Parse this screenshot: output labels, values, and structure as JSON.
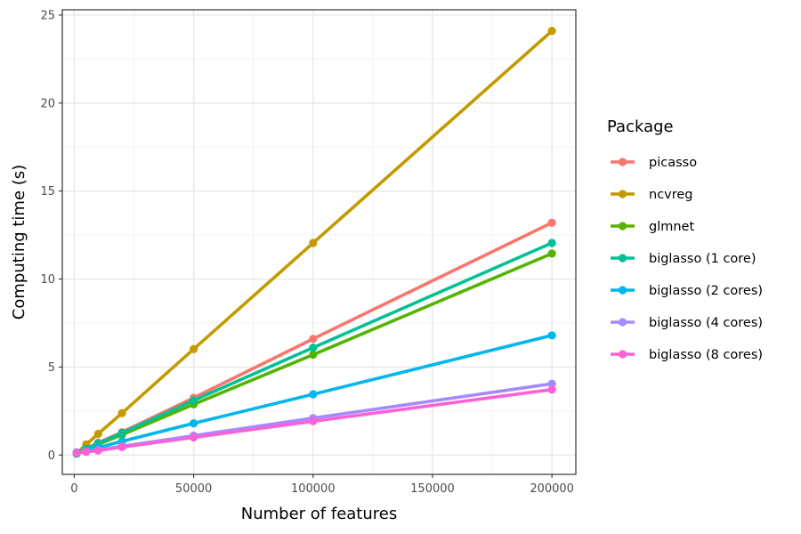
{
  "chart_data": {
    "type": "line",
    "xlabel": "Number of features",
    "ylabel": "Computing time (s)",
    "xlim": [
      -5000,
      210000
    ],
    "ylim": [
      -1.1,
      25.3
    ],
    "x_ticks": [
      0,
      50000,
      100000,
      150000,
      200000
    ],
    "x_tick_labels": [
      "0",
      "50000",
      "100000",
      "150000",
      "200000"
    ],
    "y_ticks": [
      0,
      5,
      10,
      15,
      20,
      25
    ],
    "y_tick_labels": [
      "0",
      "5",
      "10",
      "15",
      "20",
      "25"
    ],
    "grid": true,
    "legend": {
      "title": "Package",
      "position": "right"
    },
    "x": [
      1000,
      5000,
      10000,
      20000,
      50000,
      100000,
      200000
    ],
    "series": [
      {
        "name": "picasso",
        "color": "#F8766D",
        "values": [
          0.08,
          0.35,
          0.7,
          1.3,
          3.25,
          6.6,
          13.2
        ]
      },
      {
        "name": "ncvreg",
        "color": "#C49A00",
        "values": [
          0.1,
          0.6,
          1.2,
          2.38,
          6.02,
          12.05,
          24.1
        ]
      },
      {
        "name": "glmnet",
        "color": "#53B400",
        "values": [
          0.08,
          0.32,
          0.6,
          1.15,
          2.88,
          5.7,
          11.45
        ]
      },
      {
        "name": "biglasso (1 core)",
        "color": "#00C094",
        "values": [
          0.07,
          0.35,
          0.65,
          1.25,
          3.1,
          6.1,
          12.05
        ]
      },
      {
        "name": "biglasso (2 cores)",
        "color": "#00B6EB",
        "values": [
          0.15,
          0.25,
          0.42,
          0.78,
          1.8,
          3.45,
          6.8
        ]
      },
      {
        "name": "biglasso (4 cores)",
        "color": "#A58AFF",
        "values": [
          0.12,
          0.2,
          0.28,
          0.5,
          1.1,
          2.1,
          4.05
        ]
      },
      {
        "name": "biglasso (8 cores)",
        "color": "#FB61D7",
        "values": [
          0.12,
          0.18,
          0.25,
          0.45,
          1.0,
          1.92,
          3.72
        ]
      }
    ]
  }
}
